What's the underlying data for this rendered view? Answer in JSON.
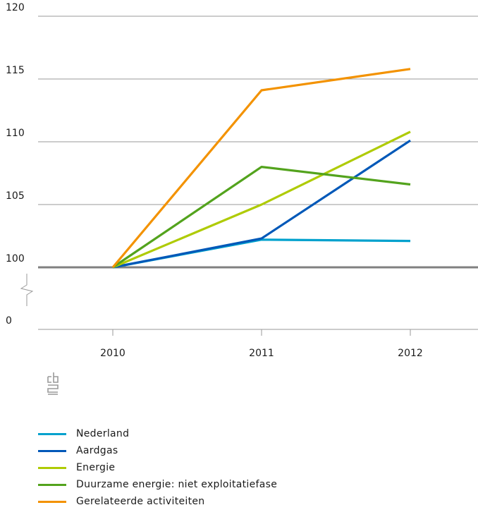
{
  "chart_data": {
    "type": "line",
    "categories": [
      "2010",
      "2011",
      "2012"
    ],
    "y_ticks": [
      "120",
      "115",
      "110",
      "105",
      "100",
      "0"
    ],
    "ylim": [
      100,
      120
    ],
    "axis_break": true,
    "grid": true,
    "legend_position": "bottom",
    "logo": "cbs",
    "series": [
      {
        "name": "Nederland",
        "color": "#00a1cd",
        "values": [
          100,
          102.2,
          102.1
        ]
      },
      {
        "name": "Aardgas",
        "color": "#0058b8",
        "values": [
          100,
          102.3,
          110.1
        ]
      },
      {
        "name": "Energie",
        "color": "#afcb05",
        "values": [
          100,
          105.0,
          110.8
        ]
      },
      {
        "name": "Duurzame energie: niet exploitatiefase",
        "color": "#53a31d",
        "values": [
          100,
          108.0,
          106.6
        ]
      },
      {
        "name": "Gerelateerde activiteiten",
        "color": "#f39200",
        "values": [
          100,
          114.1,
          115.8
        ]
      }
    ]
  }
}
